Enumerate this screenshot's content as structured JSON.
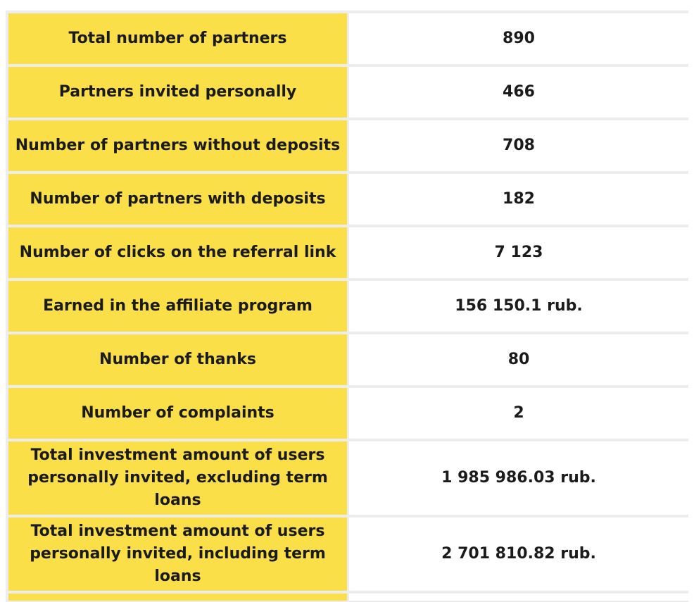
{
  "stats": {
    "rows": [
      {
        "label": "Total number of partners",
        "value": "890"
      },
      {
        "label": "Partners invited personally",
        "value": "466"
      },
      {
        "label": "Number of partners without deposits",
        "value": "708"
      },
      {
        "label": "Number of partners with deposits",
        "value": "182"
      },
      {
        "label": "Number of clicks on the referral link",
        "value": "7 123"
      },
      {
        "label": "Earned in the affiliate program",
        "value": "156 150.1 rub."
      },
      {
        "label": "Number of thanks",
        "value": "80"
      },
      {
        "label": "Number of complaints",
        "value": "2"
      },
      {
        "label": "Total investment amount of users personally invited, excluding term loans",
        "value": "1 985 986.03 rub."
      },
      {
        "label": "Total investment amount of users personally invited, including term loans",
        "value": "2 701 810.82 rub."
      }
    ]
  },
  "colors": {
    "label_background": "#fadf48",
    "value_background": "#ffffff",
    "grid_lines": "#ededed",
    "text": "#1b1b1b"
  }
}
